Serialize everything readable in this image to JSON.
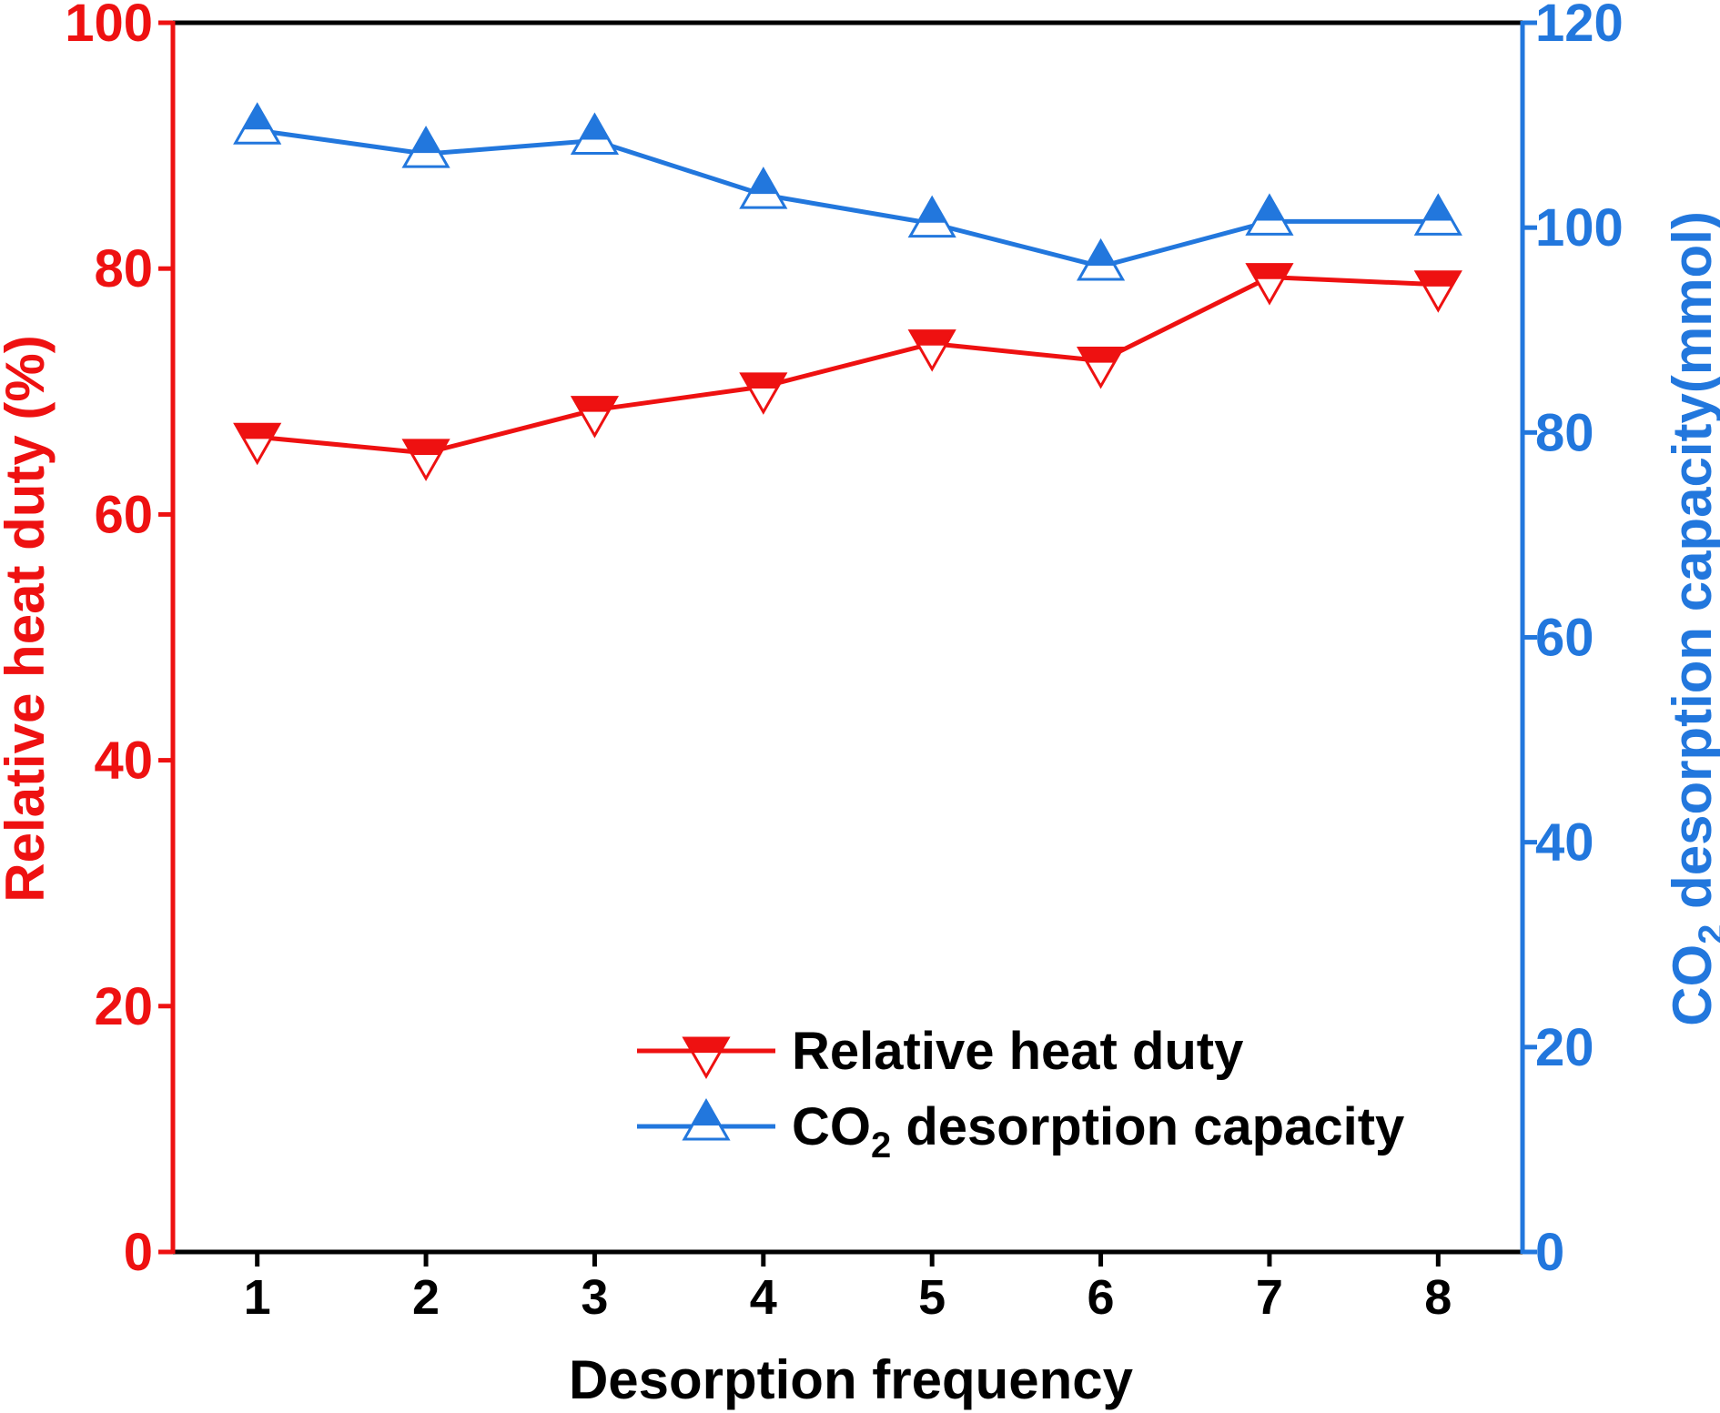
{
  "chart_data": {
    "type": "line",
    "xlabel": "Desorption frequency",
    "ylabel_left": "Relative heat duty (%)",
    "ylabel_right": {
      "prefix": "CO",
      "sub": "2",
      "rest": " desorption capacity(mmol)"
    },
    "x": [
      1,
      2,
      3,
      4,
      5,
      6,
      7,
      8
    ],
    "xlim": [
      0.5,
      8.5
    ],
    "ylim_left": [
      0,
      100
    ],
    "ylim_right": [
      0,
      120
    ],
    "yticks_left": [
      0,
      20,
      40,
      60,
      80,
      100
    ],
    "yticks_right": [
      0,
      20,
      40,
      60,
      80,
      100,
      120
    ],
    "grid": false,
    "legend_position": "bottom-right",
    "series": [
      {
        "name": "Relative heat duty",
        "axis": "left",
        "color": "#ee1111",
        "marker": "triangle-down",
        "values": [
          66.3,
          65.0,
          68.5,
          70.4,
          73.9,
          72.5,
          79.3,
          78.7
        ]
      },
      {
        "name": "CO2 desorption capacity",
        "name_parts": {
          "prefix": "CO",
          "sub": "2",
          "rest": " desorption capacity"
        },
        "axis": "right",
        "color": "#2277dd",
        "marker": "triangle-up",
        "values": [
          109.5,
          107.2,
          108.5,
          103.2,
          100.4,
          96.2,
          100.6,
          100.6
        ]
      }
    ],
    "colors": {
      "left_axis": "#ee1111",
      "right_axis": "#2277dd",
      "frame": "#000000"
    }
  }
}
